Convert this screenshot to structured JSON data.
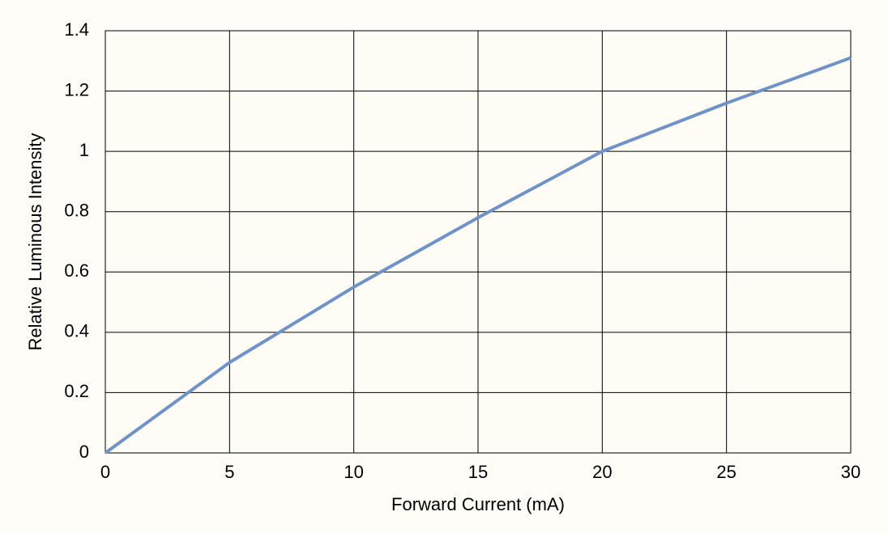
{
  "chart_data": {
    "type": "line",
    "x_label": "Forward Current (mA)",
    "y_label": "Relative Luminous Intensity",
    "x": [
      0,
      5,
      10,
      15,
      20,
      25,
      30
    ],
    "series": [
      {
        "color": "#6f93c6",
        "values": [
          0,
          0.3,
          0.55,
          0.78,
          1.0,
          1.16,
          1.31
        ]
      }
    ],
    "xlim": [
      0,
      30
    ],
    "xticks": [
      0,
      5,
      10,
      15,
      20,
      25,
      30
    ],
    "ylim": [
      0,
      1.4
    ],
    "yticks": [
      0,
      0.2,
      0.4,
      0.6,
      0.8,
      1,
      1.2,
      1.4
    ],
    "grid": true
  }
}
